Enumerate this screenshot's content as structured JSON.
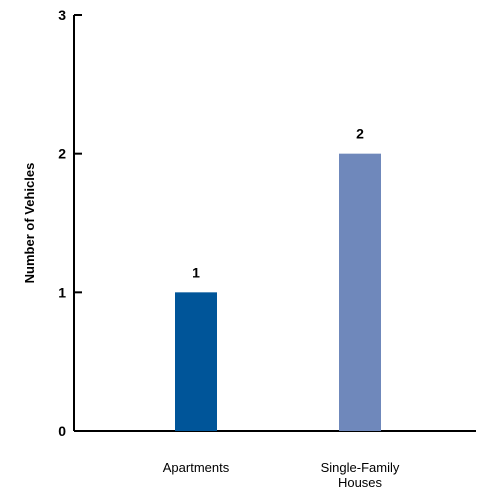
{
  "chart_data": {
    "type": "bar",
    "categories": [
      [
        "Apartments"
      ],
      [
        "Single-Family",
        "Houses"
      ]
    ],
    "values": [
      1,
      2
    ],
    "data_labels": [
      "1",
      "2"
    ],
    "bar_colors": [
      "#005599",
      "#6f88bb"
    ],
    "ylabel": "Number of Vehicles",
    "ylim": [
      0,
      3
    ],
    "yticks": [
      0,
      1,
      2,
      3
    ],
    "ytick_labels": [
      "0",
      "1",
      "2",
      "3"
    ],
    "grid": false,
    "legend": "none"
  }
}
